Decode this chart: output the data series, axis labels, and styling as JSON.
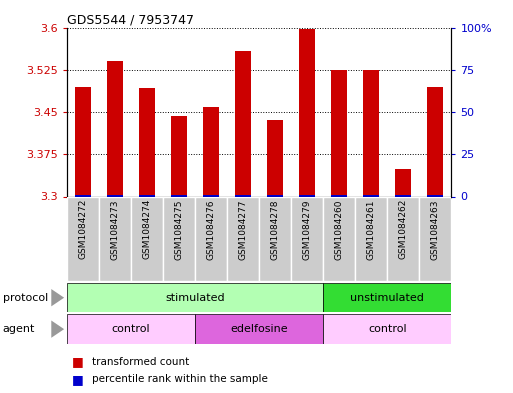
{
  "title": "GDS5544 / 7953747",
  "samples": [
    "GSM1084272",
    "GSM1084273",
    "GSM1084274",
    "GSM1084275",
    "GSM1084276",
    "GSM1084277",
    "GSM1084278",
    "GSM1084279",
    "GSM1084260",
    "GSM1084261",
    "GSM1084262",
    "GSM1084263"
  ],
  "red_values": [
    3.495,
    3.54,
    3.492,
    3.443,
    3.458,
    3.558,
    3.435,
    3.598,
    3.525,
    3.525,
    3.348,
    3.495
  ],
  "blue_values": [
    3.302,
    3.302,
    3.302,
    3.302,
    3.302,
    3.302,
    3.302,
    3.302,
    3.302,
    3.302,
    3.302,
    3.302
  ],
  "ylim_left": [
    3.3,
    3.6
  ],
  "ylim_right": [
    0,
    100
  ],
  "yticks_left": [
    3.3,
    3.375,
    3.45,
    3.525,
    3.6
  ],
  "ytick_labels_left": [
    "3.3",
    "3.375",
    "3.45",
    "3.525",
    "3.6"
  ],
  "yticks_right": [
    0,
    25,
    50,
    75,
    100
  ],
  "ytick_labels_right": [
    "0",
    "25",
    "50",
    "75",
    "100%"
  ],
  "bar_width": 0.5,
  "red_color": "#cc0000",
  "blue_color": "#0000cc",
  "grid_color": "#000000",
  "protocol_labels": [
    {
      "text": "stimulated",
      "start": 0,
      "end": 7,
      "color": "#b3ffb3"
    },
    {
      "text": "unstimulated",
      "start": 8,
      "end": 11,
      "color": "#33dd33"
    }
  ],
  "agent_labels": [
    {
      "text": "control",
      "start": 0,
      "end": 3,
      "color": "#ffccff"
    },
    {
      "text": "edelfosine",
      "start": 4,
      "end": 7,
      "color": "#dd66dd"
    },
    {
      "text": "control",
      "start": 8,
      "end": 11,
      "color": "#ffccff"
    }
  ],
  "protocol_row_label": "protocol",
  "agent_row_label": "agent",
  "legend_red": "transformed count",
  "legend_blue": "percentile rank within the sample",
  "tick_label_color_left": "#cc0000",
  "tick_label_color_right": "#0000cc",
  "sample_bg_color": "#cccccc",
  "arrow_color": "#999999"
}
